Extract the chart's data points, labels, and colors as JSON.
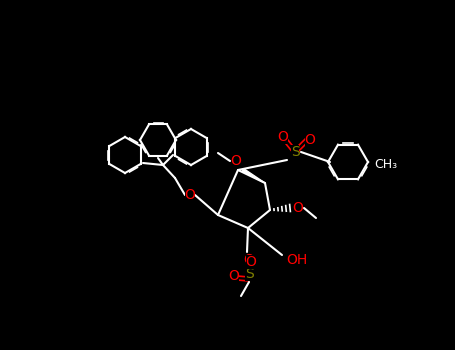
{
  "bg": "#000000",
  "bond_color": "#ffffff",
  "atom_colors": {
    "O": "#ff0000",
    "S": "#808000",
    "C": "#ffffff",
    "H": "#ffffff"
  },
  "bond_width": 1.5,
  "font_size": 10
}
